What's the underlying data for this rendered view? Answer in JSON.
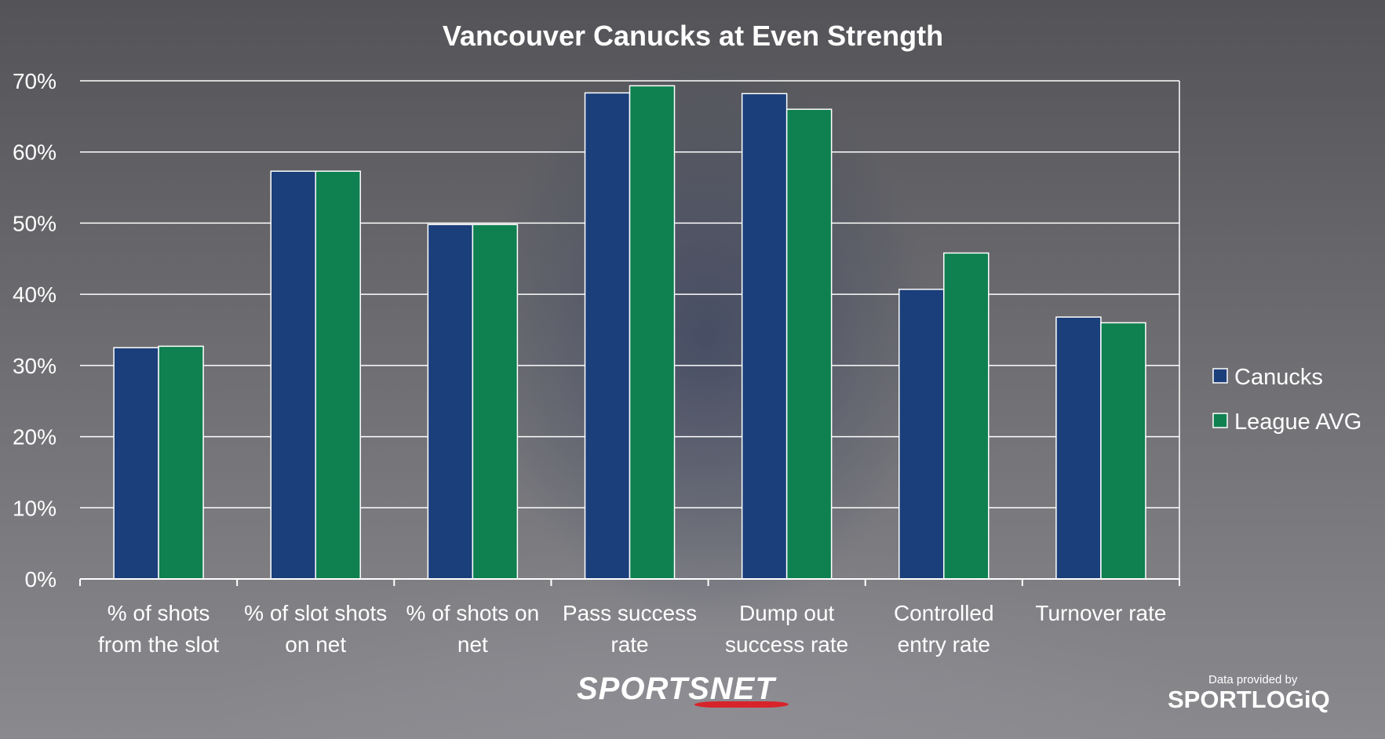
{
  "chart_data": {
    "type": "bar",
    "title": "Vancouver Canucks at Even Strength",
    "categories": [
      [
        "% of shots",
        "from the slot"
      ],
      [
        "% of slot shots",
        "on net"
      ],
      [
        "% of shots on",
        "net"
      ],
      [
        "Pass success",
        "rate"
      ],
      [
        "Dump out",
        "success rate"
      ],
      [
        "Controlled",
        "entry rate"
      ],
      [
        "Turnover rate"
      ]
    ],
    "series": [
      {
        "name": "Canucks",
        "color": "#1b3f7a",
        "values": [
          32.5,
          57.3,
          49.8,
          68.3,
          68.2,
          40.7,
          36.8
        ]
      },
      {
        "name": "League AVG",
        "color": "#0f8050",
        "values": [
          32.7,
          57.3,
          49.8,
          69.3,
          66.0,
          45.8,
          36.0
        ]
      }
    ],
    "ylim": [
      0,
      70
    ],
    "yticks": [
      "0%",
      "10%",
      "20%",
      "30%",
      "40%",
      "50%",
      "60%",
      "70%"
    ],
    "grid": true,
    "legend_position": "right"
  },
  "branding": {
    "broadcaster": "SPORTSNET",
    "provider_caption": "Data provided by",
    "provider": "SPORTLOGiQ"
  }
}
